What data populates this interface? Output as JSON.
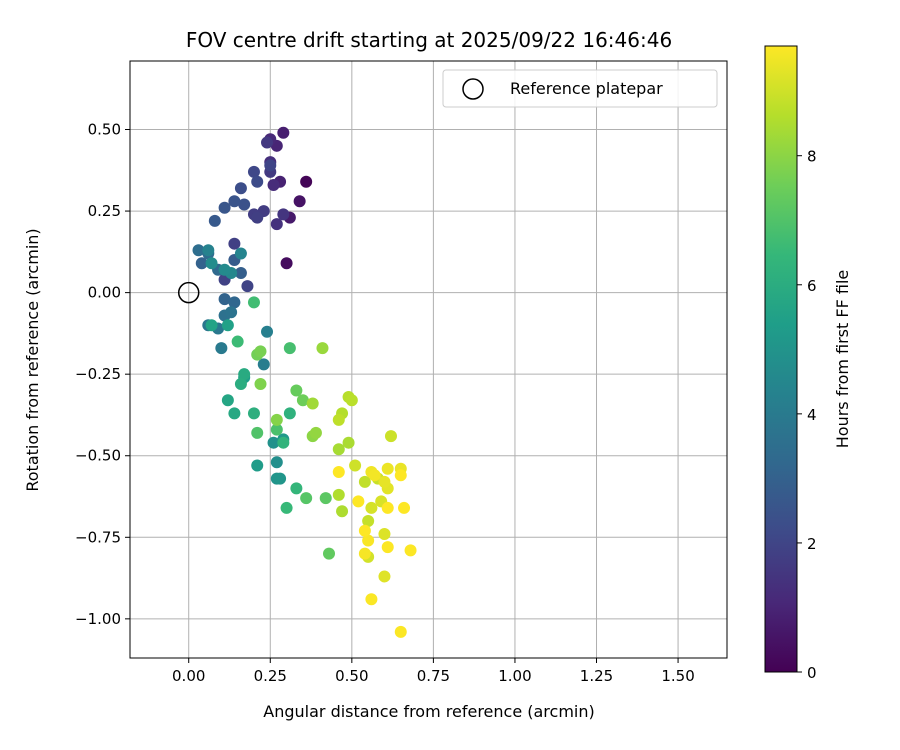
{
  "chart_data": {
    "type": "scatter",
    "title": "FOV centre drift starting at 2025/09/22 16:46:46",
    "xlabel": "Angular distance from reference (arcmin)",
    "ylabel": "Rotation from reference (arcmin)",
    "xlim": [
      -0.18,
      1.65
    ],
    "ylim": [
      -1.12,
      0.71
    ],
    "grid": true,
    "x_ticks": [
      0.0,
      0.25,
      0.5,
      0.75,
      1.0,
      1.25,
      1.5
    ],
    "x_tick_labels": [
      "0.00",
      "0.25",
      "0.50",
      "0.75",
      "1.00",
      "1.25",
      "1.50"
    ],
    "y_ticks": [
      0.5,
      0.25,
      0.0,
      -0.25,
      -0.5,
      -0.75,
      -1.0
    ],
    "y_tick_labels": [
      "0.50",
      "0.25",
      "0.00",
      "−0.25",
      "−0.50",
      "−0.75",
      "−1.00"
    ],
    "legend": {
      "position": "top-right",
      "entries": [
        "Reference platepar"
      ]
    },
    "reference_point": {
      "x": 0.0,
      "y": 0.0
    },
    "colorbar": {
      "label": "Hours from first FF file",
      "range": [
        0,
        9.7
      ],
      "ticks": [
        0,
        2,
        4,
        6,
        8
      ],
      "tick_labels": [
        "0",
        "2",
        "4",
        "6",
        "8"
      ],
      "colormap": [
        "#440154",
        "#482878",
        "#3e4a89",
        "#31688e",
        "#26828e",
        "#1f9e89",
        "#35b779",
        "#6ece58",
        "#b5de2b",
        "#fde725"
      ]
    },
    "points": [
      {
        "x": 0.36,
        "y": 0.34,
        "h": 0.1
      },
      {
        "x": 0.3,
        "y": 0.09,
        "h": 0.3
      },
      {
        "x": 0.34,
        "y": 0.28,
        "h": 0.5
      },
      {
        "x": 0.31,
        "y": 0.23,
        "h": 0.7
      },
      {
        "x": 0.29,
        "y": 0.49,
        "h": 0.8
      },
      {
        "x": 0.28,
        "y": 0.34,
        "h": 0.9
      },
      {
        "x": 0.27,
        "y": 0.45,
        "h": 1.0
      },
      {
        "x": 0.25,
        "y": 0.47,
        "h": 1.1
      },
      {
        "x": 0.26,
        "y": 0.33,
        "h": 1.2
      },
      {
        "x": 0.25,
        "y": 0.4,
        "h": 1.3
      },
      {
        "x": 0.27,
        "y": 0.21,
        "h": 1.4
      },
      {
        "x": 0.29,
        "y": 0.24,
        "h": 1.5
      },
      {
        "x": 0.24,
        "y": 0.46,
        "h": 1.6
      },
      {
        "x": 0.25,
        "y": 0.37,
        "h": 1.65
      },
      {
        "x": 0.23,
        "y": 0.25,
        "h": 1.7
      },
      {
        "x": 0.2,
        "y": 0.24,
        "h": 1.75
      },
      {
        "x": 0.21,
        "y": 0.23,
        "h": 1.8
      },
      {
        "x": 0.14,
        "y": 0.15,
        "h": 1.85
      },
      {
        "x": 0.11,
        "y": 0.04,
        "h": 1.9
      },
      {
        "x": 0.18,
        "y": 0.02,
        "h": 1.95
      },
      {
        "x": 0.25,
        "y": 0.39,
        "h": 2.0
      },
      {
        "x": 0.2,
        "y": 0.37,
        "h": 2.1
      },
      {
        "x": 0.21,
        "y": 0.34,
        "h": 2.2
      },
      {
        "x": 0.16,
        "y": 0.32,
        "h": 2.3
      },
      {
        "x": 0.17,
        "y": 0.27,
        "h": 2.4
      },
      {
        "x": 0.14,
        "y": 0.28,
        "h": 2.5
      },
      {
        "x": 0.11,
        "y": 0.26,
        "h": 2.6
      },
      {
        "x": 0.08,
        "y": 0.22,
        "h": 2.7
      },
      {
        "x": 0.14,
        "y": 0.1,
        "h": 2.8
      },
      {
        "x": 0.16,
        "y": 0.06,
        "h": 2.9
      },
      {
        "x": 0.04,
        "y": 0.09,
        "h": 3.0
      },
      {
        "x": 0.11,
        "y": -0.02,
        "h": 3.1
      },
      {
        "x": 0.14,
        "y": -0.03,
        "h": 3.2
      },
      {
        "x": 0.09,
        "y": 0.07,
        "h": 3.3
      },
      {
        "x": 0.06,
        "y": 0.12,
        "h": 3.4
      },
      {
        "x": 0.03,
        "y": 0.13,
        "h": 3.5
      },
      {
        "x": 0.11,
        "y": -0.07,
        "h": 3.6
      },
      {
        "x": 0.13,
        "y": -0.06,
        "h": 3.7
      },
      {
        "x": 0.06,
        "y": -0.1,
        "h": 3.8
      },
      {
        "x": 0.09,
        "y": -0.11,
        "h": 3.9
      },
      {
        "x": 0.1,
        "y": -0.17,
        "h": 4.0
      },
      {
        "x": 0.23,
        "y": -0.22,
        "h": 4.1
      },
      {
        "x": 0.24,
        "y": -0.12,
        "h": 4.2
      },
      {
        "x": 0.06,
        "y": 0.13,
        "h": 4.3
      },
      {
        "x": 0.16,
        "y": 0.12,
        "h": 4.4
      },
      {
        "x": 0.13,
        "y": 0.06,
        "h": 4.5
      },
      {
        "x": 0.11,
        "y": 0.07,
        "h": 4.6
      },
      {
        "x": 0.07,
        "y": 0.09,
        "h": 4.7
      },
      {
        "x": 0.27,
        "y": -0.52,
        "h": 4.8
      },
      {
        "x": 0.26,
        "y": -0.46,
        "h": 4.9
      },
      {
        "x": 0.27,
        "y": -0.57,
        "h": 5.0
      },
      {
        "x": 0.28,
        "y": -0.57,
        "h": 5.1
      },
      {
        "x": 0.29,
        "y": -0.45,
        "h": 5.2
      },
      {
        "x": 0.21,
        "y": -0.53,
        "h": 5.3
      },
      {
        "x": 0.17,
        "y": -0.26,
        "h": 5.4
      },
      {
        "x": 0.12,
        "y": -0.1,
        "h": 5.5
      },
      {
        "x": 0.07,
        "y": -0.1,
        "h": 5.6
      },
      {
        "x": 0.12,
        "y": -0.33,
        "h": 5.7
      },
      {
        "x": 0.14,
        "y": -0.37,
        "h": 5.8
      },
      {
        "x": 0.17,
        "y": -0.25,
        "h": 5.9
      },
      {
        "x": 0.16,
        "y": -0.28,
        "h": 6.0
      },
      {
        "x": 0.2,
        "y": -0.37,
        "h": 6.1
      },
      {
        "x": 0.31,
        "y": -0.37,
        "h": 6.2
      },
      {
        "x": 0.29,
        "y": -0.46,
        "h": 6.3
      },
      {
        "x": 0.33,
        "y": -0.6,
        "h": 6.4
      },
      {
        "x": 0.3,
        "y": -0.66,
        "h": 6.5
      },
      {
        "x": 0.15,
        "y": -0.15,
        "h": 6.6
      },
      {
        "x": 0.2,
        "y": -0.03,
        "h": 6.7
      },
      {
        "x": 0.31,
        "y": -0.17,
        "h": 6.8
      },
      {
        "x": 0.27,
        "y": -0.42,
        "h": 6.9
      },
      {
        "x": 0.21,
        "y": -0.43,
        "h": 7.0
      },
      {
        "x": 0.36,
        "y": -0.63,
        "h": 7.1
      },
      {
        "x": 0.42,
        "y": -0.63,
        "h": 7.2
      },
      {
        "x": 0.43,
        "y": -0.8,
        "h": 7.3
      },
      {
        "x": 0.33,
        "y": -0.3,
        "h": 7.4
      },
      {
        "x": 0.35,
        "y": -0.33,
        "h": 7.5
      },
      {
        "x": 0.21,
        "y": -0.19,
        "h": 7.6
      },
      {
        "x": 0.22,
        "y": -0.18,
        "h": 7.7
      },
      {
        "x": 0.22,
        "y": -0.28,
        "h": 7.8
      },
      {
        "x": 0.27,
        "y": -0.39,
        "h": 7.9
      },
      {
        "x": 0.38,
        "y": -0.44,
        "h": 8.0
      },
      {
        "x": 0.39,
        "y": -0.43,
        "h": 8.1
      },
      {
        "x": 0.41,
        "y": -0.17,
        "h": 8.2
      },
      {
        "x": 0.38,
        "y": -0.34,
        "h": 8.3
      },
      {
        "x": 0.46,
        "y": -0.48,
        "h": 8.4
      },
      {
        "x": 0.49,
        "y": -0.46,
        "h": 8.45
      },
      {
        "x": 0.47,
        "y": -0.67,
        "h": 8.5
      },
      {
        "x": 0.46,
        "y": -0.62,
        "h": 8.55
      },
      {
        "x": 0.47,
        "y": -0.37,
        "h": 8.6
      },
      {
        "x": 0.49,
        "y": -0.32,
        "h": 8.65
      },
      {
        "x": 0.5,
        "y": -0.33,
        "h": 8.7
      },
      {
        "x": 0.46,
        "y": -0.39,
        "h": 8.75
      },
      {
        "x": 0.54,
        "y": -0.58,
        "h": 8.8
      },
      {
        "x": 0.55,
        "y": -0.7,
        "h": 8.85
      },
      {
        "x": 0.58,
        "y": -0.57,
        "h": 8.9
      },
      {
        "x": 0.62,
        "y": -0.44,
        "h": 8.95
      },
      {
        "x": 0.51,
        "y": -0.53,
        "h": 9.0
      },
      {
        "x": 0.55,
        "y": -0.81,
        "h": 9.05
      },
      {
        "x": 0.56,
        "y": -0.66,
        "h": 9.1
      },
      {
        "x": 0.59,
        "y": -0.64,
        "h": 9.15
      },
      {
        "x": 0.6,
        "y": -0.74,
        "h": 9.2
      },
      {
        "x": 0.6,
        "y": -0.87,
        "h": 9.25
      },
      {
        "x": 0.61,
        "y": -0.6,
        "h": 9.3
      },
      {
        "x": 0.6,
        "y": -0.58,
        "h": 9.35
      },
      {
        "x": 0.65,
        "y": -0.54,
        "h": 9.4
      },
      {
        "x": 0.61,
        "y": -0.54,
        "h": 9.45
      },
      {
        "x": 0.56,
        "y": -0.55,
        "h": 9.5
      },
      {
        "x": 0.57,
        "y": -0.56,
        "h": 9.55
      },
      {
        "x": 0.54,
        "y": -0.8,
        "h": 9.6
      },
      {
        "x": 0.55,
        "y": -0.76,
        "h": 9.62
      },
      {
        "x": 0.56,
        "y": -0.94,
        "h": 9.65
      },
      {
        "x": 0.65,
        "y": -1.04,
        "h": 9.67
      },
      {
        "x": 0.68,
        "y": -0.79,
        "h": 9.68
      },
      {
        "x": 0.61,
        "y": -0.78,
        "h": 9.69
      },
      {
        "x": 0.65,
        "y": -0.56,
        "h": 9.7
      },
      {
        "x": 0.52,
        "y": -0.64,
        "h": 9.7
      },
      {
        "x": 0.54,
        "y": -0.73,
        "h": 9.7
      },
      {
        "x": 0.61,
        "y": -0.66,
        "h": 9.7
      },
      {
        "x": 0.66,
        "y": -0.66,
        "h": 9.7
      },
      {
        "x": 0.46,
        "y": -0.55,
        "h": 9.7
      }
    ]
  }
}
